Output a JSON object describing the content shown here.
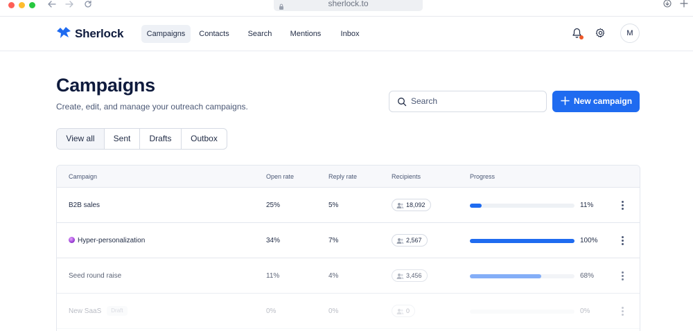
{
  "browser": {
    "url": "sherlock.to"
  },
  "brand": {
    "name": "Sherlock",
    "color": "#1f6bf0"
  },
  "nav": {
    "items": [
      {
        "label": "Campaigns",
        "active": true
      },
      {
        "label": "Contacts",
        "active": false
      },
      {
        "label": "Search",
        "active": false
      },
      {
        "label": "Mentions",
        "active": false
      },
      {
        "label": "Inbox",
        "active": false
      }
    ]
  },
  "user": {
    "avatar_initial": "M",
    "notification_color": "#ef5a2a"
  },
  "page": {
    "title": "Campaigns",
    "subtitle": "Create, edit, and manage your outreach campaigns."
  },
  "search": {
    "placeholder": "Search"
  },
  "actions": {
    "new_campaign": "New campaign",
    "accent": "#1f6bf0"
  },
  "tabs": [
    {
      "label": "View all",
      "active": true
    },
    {
      "label": "Sent",
      "active": false
    },
    {
      "label": "Drafts",
      "active": false
    },
    {
      "label": "Outbox",
      "active": false
    }
  ],
  "table": {
    "columns": [
      "Campaign",
      "Open rate",
      "Reply rate",
      "Recipients",
      "Progress"
    ],
    "rows": [
      {
        "name": "B2B sales",
        "open_rate": "25%",
        "reply_rate": "5%",
        "recipients": "18,092",
        "progress_label": "11%",
        "progress": 0.11,
        "bar_color": "#1f6bf0",
        "badge": ""
      },
      {
        "name": "Hyper-personalization",
        "open_rate": "34%",
        "reply_rate": "7%",
        "recipients": "2,567",
        "progress_label": "100%",
        "progress": 1.0,
        "bar_color": "#1f6bf0",
        "badge": ""
      },
      {
        "name": "Seed round raise",
        "open_rate": "11%",
        "reply_rate": "4%",
        "recipients": "3,456",
        "progress_label": "68%",
        "progress": 0.68,
        "bar_color": "#5b93f5",
        "badge": ""
      },
      {
        "name": "New SaaS",
        "open_rate": "0%",
        "reply_rate": "0%",
        "recipients": "0",
        "progress_label": "0%",
        "progress": 0.0,
        "bar_color": "#1f6bf0",
        "badge": "Draft"
      }
    ]
  }
}
